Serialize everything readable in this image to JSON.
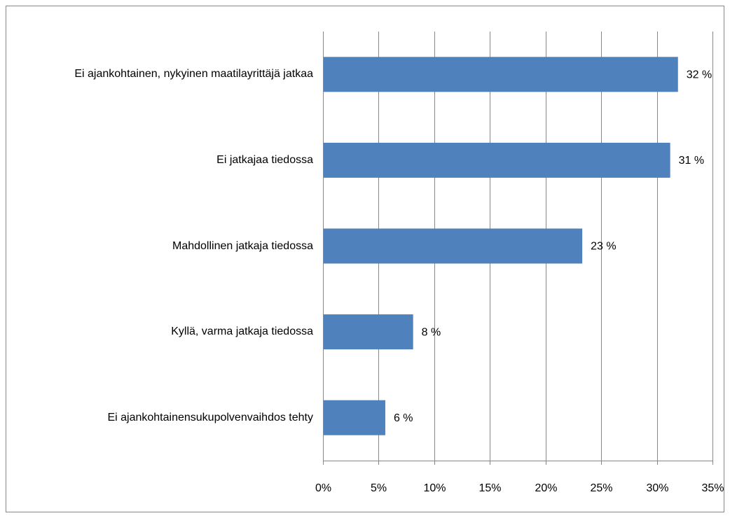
{
  "chart_data": {
    "type": "bar",
    "orientation": "horizontal",
    "categories": [
      "Ei ajankohtainen, nykyinen maatilayrittäjä jatkaa",
      "Ei jatkajaa tiedossa",
      "Mahdollinen jatkaja tiedossa",
      "Kyllä, varma jatkaja tiedossa",
      "Ei ajankohtainensukupolvenvaihdos tehty"
    ],
    "values": [
      31.9,
      31.2,
      23.3,
      8.1,
      5.6
    ],
    "value_labels": [
      "32 %",
      "31 %",
      "23 %",
      "8 %",
      "6 %"
    ],
    "color": "#4f81bd",
    "xlim": [
      0,
      35
    ],
    "xticks": [
      {
        "value": 0,
        "label": "0%"
      },
      {
        "value": 5,
        "label": "5%"
      },
      {
        "value": 10,
        "label": "10%"
      },
      {
        "value": 15,
        "label": "15%"
      },
      {
        "value": 20,
        "label": "20%"
      },
      {
        "value": 25,
        "label": "25%"
      },
      {
        "value": 30,
        "label": "30%"
      },
      {
        "value": 35,
        "label": "35%"
      }
    ],
    "grid": true
  }
}
